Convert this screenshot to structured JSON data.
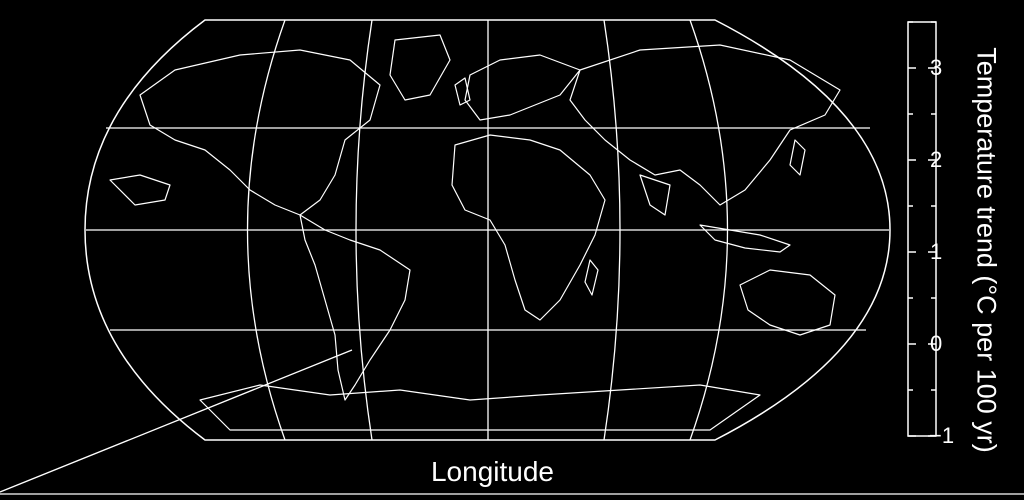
{
  "map": {
    "projection": "Robinson",
    "style": "white line drawing on black",
    "x_axis_label": "Longitude"
  },
  "colorbar": {
    "label": "Temperature trend (°C per 100 yr)",
    "range": [
      -1,
      3.5
    ],
    "ticks": [
      "3",
      "2",
      "1",
      "0",
      "−1"
    ],
    "tick_values": [
      3,
      2,
      1,
      0,
      -1
    ]
  },
  "colors": {
    "background": "#000000",
    "lines": "#ffffff"
  }
}
